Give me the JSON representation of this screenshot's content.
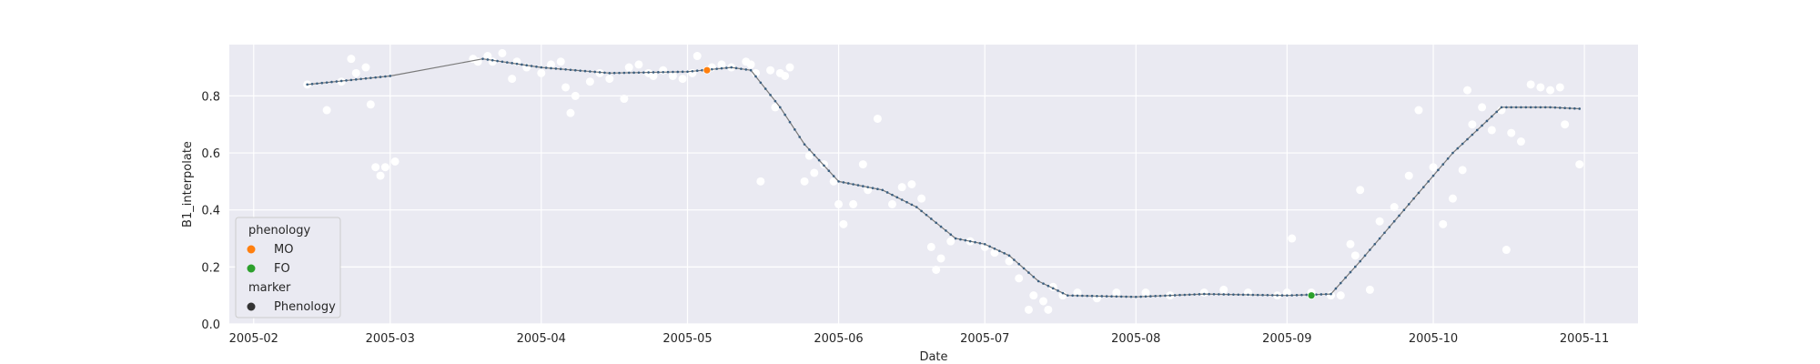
{
  "chart_data": {
    "type": "scatter",
    "xlabel": "Date",
    "ylabel": "B1_interpolate",
    "xlim": [
      "2005-01-27",
      "2005-11-12"
    ],
    "ylim": [
      0.0,
      0.98
    ],
    "grid": true,
    "x_ticks": [
      "2005-02",
      "2005-03",
      "2005-04",
      "2005-05",
      "2005-06",
      "2005-07",
      "2005-08",
      "2005-09",
      "2005-10",
      "2005-11"
    ],
    "y_ticks": [
      0.0,
      0.2,
      0.4,
      0.6,
      0.8
    ],
    "y_tick_labels": [
      "0.0",
      "0.2",
      "0.4",
      "0.6",
      "0.8"
    ],
    "colors": {
      "background": "#eaeaf2",
      "grid": "#ffffff",
      "raw_points": "#ffffff",
      "smooth_line": "#7a7a7a",
      "smooth_dots": "#3a5f80",
      "MO": "#ff7f0e",
      "FO": "#2ca02c",
      "Phenology": "#333333"
    },
    "legend": {
      "position": "lower-left",
      "title1": "phenology",
      "entries1": [
        {
          "label": "MO",
          "color": "#ff7f0e"
        },
        {
          "label": "FO",
          "color": "#2ca02c"
        }
      ],
      "title2": "marker",
      "entries2": [
        {
          "label": "Phenology",
          "color": "#333333"
        }
      ]
    },
    "raw_observations": [
      [
        "2005-02-12",
        0.84
      ],
      [
        "2005-02-16",
        0.75
      ],
      [
        "2005-02-19",
        0.85
      ],
      [
        "2005-02-21",
        0.93
      ],
      [
        "2005-02-22",
        0.88
      ],
      [
        "2005-02-24",
        0.9
      ],
      [
        "2005-02-25",
        0.77
      ],
      [
        "2005-02-26",
        0.55
      ],
      [
        "2005-02-27",
        0.52
      ],
      [
        "2005-02-28",
        0.55
      ],
      [
        "2005-03-02",
        0.57
      ],
      [
        "2005-03-18",
        0.93
      ],
      [
        "2005-03-19",
        0.92
      ],
      [
        "2005-03-21",
        0.94
      ],
      [
        "2005-03-22",
        0.92
      ],
      [
        "2005-03-24",
        0.95
      ],
      [
        "2005-03-26",
        0.86
      ],
      [
        "2005-03-27",
        0.92
      ],
      [
        "2005-03-29",
        0.9
      ],
      [
        "2005-04-01",
        0.88
      ],
      [
        "2005-04-03",
        0.91
      ],
      [
        "2005-04-05",
        0.92
      ],
      [
        "2005-04-06",
        0.83
      ],
      [
        "2005-04-07",
        0.74
      ],
      [
        "2005-04-08",
        0.8
      ],
      [
        "2005-04-11",
        0.85
      ],
      [
        "2005-04-13",
        0.88
      ],
      [
        "2005-04-15",
        0.86
      ],
      [
        "2005-04-18",
        0.79
      ],
      [
        "2005-04-19",
        0.9
      ],
      [
        "2005-04-21",
        0.91
      ],
      [
        "2005-04-23",
        0.88
      ],
      [
        "2005-04-24",
        0.87
      ],
      [
        "2005-04-26",
        0.89
      ],
      [
        "2005-04-28",
        0.87
      ],
      [
        "2005-04-30",
        0.86
      ],
      [
        "2005-05-02",
        0.88
      ],
      [
        "2005-05-03",
        0.94
      ],
      [
        "2005-05-06",
        0.9
      ],
      [
        "2005-05-08",
        0.91
      ],
      [
        "2005-05-10",
        0.9
      ],
      [
        "2005-05-13",
        0.92
      ],
      [
        "2005-05-14",
        0.91
      ],
      [
        "2005-05-15",
        0.88
      ],
      [
        "2005-05-16",
        0.5
      ],
      [
        "2005-05-18",
        0.89
      ],
      [
        "2005-05-19",
        0.76
      ],
      [
        "2005-05-20",
        0.88
      ],
      [
        "2005-05-21",
        0.87
      ],
      [
        "2005-05-22",
        0.9
      ],
      [
        "2005-05-25",
        0.5
      ],
      [
        "2005-05-26",
        0.59
      ],
      [
        "2005-05-27",
        0.53
      ],
      [
        "2005-05-29",
        0.56
      ],
      [
        "2005-05-31",
        0.5
      ],
      [
        "2005-06-01",
        0.42
      ],
      [
        "2005-06-02",
        0.35
      ],
      [
        "2005-06-04",
        0.42
      ],
      [
        "2005-06-06",
        0.56
      ],
      [
        "2005-06-07",
        0.47
      ],
      [
        "2005-06-09",
        0.72
      ],
      [
        "2005-06-12",
        0.42
      ],
      [
        "2005-06-14",
        0.48
      ],
      [
        "2005-06-16",
        0.49
      ],
      [
        "2005-06-18",
        0.44
      ],
      [
        "2005-06-20",
        0.27
      ],
      [
        "2005-06-21",
        0.19
      ],
      [
        "2005-06-22",
        0.23
      ],
      [
        "2005-06-24",
        0.29
      ],
      [
        "2005-06-28",
        0.29
      ],
      [
        "2005-07-01",
        0.27
      ],
      [
        "2005-07-03",
        0.25
      ],
      [
        "2005-07-06",
        0.22
      ],
      [
        "2005-07-08",
        0.16
      ],
      [
        "2005-07-10",
        0.05
      ],
      [
        "2005-07-11",
        0.1
      ],
      [
        "2005-07-13",
        0.08
      ],
      [
        "2005-07-14",
        0.05
      ],
      [
        "2005-07-15",
        0.13
      ],
      [
        "2005-07-17",
        0.1
      ],
      [
        "2005-07-20",
        0.11
      ],
      [
        "2005-07-24",
        0.09
      ],
      [
        "2005-07-28",
        0.11
      ],
      [
        "2005-08-03",
        0.11
      ],
      [
        "2005-08-08",
        0.1
      ],
      [
        "2005-08-15",
        0.11
      ],
      [
        "2005-08-19",
        0.12
      ],
      [
        "2005-08-24",
        0.11
      ],
      [
        "2005-08-30",
        0.1
      ],
      [
        "2005-09-01",
        0.11
      ],
      [
        "2005-09-02",
        0.3
      ],
      [
        "2005-09-06",
        0.11
      ],
      [
        "2005-09-10",
        0.1
      ],
      [
        "2005-09-12",
        0.1
      ],
      [
        "2005-09-14",
        0.28
      ],
      [
        "2005-09-15",
        0.24
      ],
      [
        "2005-09-16",
        0.47
      ],
      [
        "2005-09-18",
        0.12
      ],
      [
        "2005-09-20",
        0.36
      ],
      [
        "2005-09-23",
        0.41
      ],
      [
        "2005-09-26",
        0.52
      ],
      [
        "2005-09-28",
        0.75
      ],
      [
        "2005-10-01",
        0.55
      ],
      [
        "2005-10-03",
        0.35
      ],
      [
        "2005-10-05",
        0.44
      ],
      [
        "2005-10-07",
        0.54
      ],
      [
        "2005-10-08",
        0.82
      ],
      [
        "2005-10-09",
        0.7
      ],
      [
        "2005-10-11",
        0.76
      ],
      [
        "2005-10-13",
        0.68
      ],
      [
        "2005-10-15",
        0.75
      ],
      [
        "2005-10-16",
        0.26
      ],
      [
        "2005-10-17",
        0.67
      ],
      [
        "2005-10-19",
        0.64
      ],
      [
        "2005-10-21",
        0.84
      ],
      [
        "2005-10-23",
        0.83
      ],
      [
        "2005-10-25",
        0.82
      ],
      [
        "2005-10-27",
        0.83
      ],
      [
        "2005-10-28",
        0.7
      ],
      [
        "2005-10-31",
        0.56
      ]
    ],
    "smooth_curve": [
      [
        "2005-02-12",
        0.84
      ],
      [
        "2005-03-01",
        0.87
      ],
      [
        "2005-03-20",
        0.93
      ],
      [
        "2005-04-01",
        0.9
      ],
      [
        "2005-04-15",
        0.88
      ],
      [
        "2005-05-01",
        0.885
      ],
      [
        "2005-05-10",
        0.9
      ],
      [
        "2005-05-14",
        0.89
      ],
      [
        "2005-05-20",
        0.76
      ],
      [
        "2005-05-25",
        0.63
      ],
      [
        "2005-06-01",
        0.5
      ],
      [
        "2005-06-10",
        0.47
      ],
      [
        "2005-06-17",
        0.41
      ],
      [
        "2005-06-25",
        0.3
      ],
      [
        "2005-07-01",
        0.28
      ],
      [
        "2005-07-06",
        0.24
      ],
      [
        "2005-07-12",
        0.15
      ],
      [
        "2005-07-18",
        0.1
      ],
      [
        "2005-08-01",
        0.095
      ],
      [
        "2005-08-15",
        0.105
      ],
      [
        "2005-09-01",
        0.1
      ],
      [
        "2005-09-10",
        0.105
      ],
      [
        "2005-09-16",
        0.22
      ],
      [
        "2005-09-25",
        0.4
      ],
      [
        "2005-10-05",
        0.6
      ],
      [
        "2005-10-15",
        0.76
      ],
      [
        "2005-10-25",
        0.76
      ],
      [
        "2005-10-31",
        0.755
      ]
    ],
    "phenology_points": [
      {
        "label": "MO",
        "date": "2005-05-05",
        "value": 0.89
      },
      {
        "label": "FO",
        "date": "2005-09-06",
        "value": 0.1
      }
    ]
  }
}
